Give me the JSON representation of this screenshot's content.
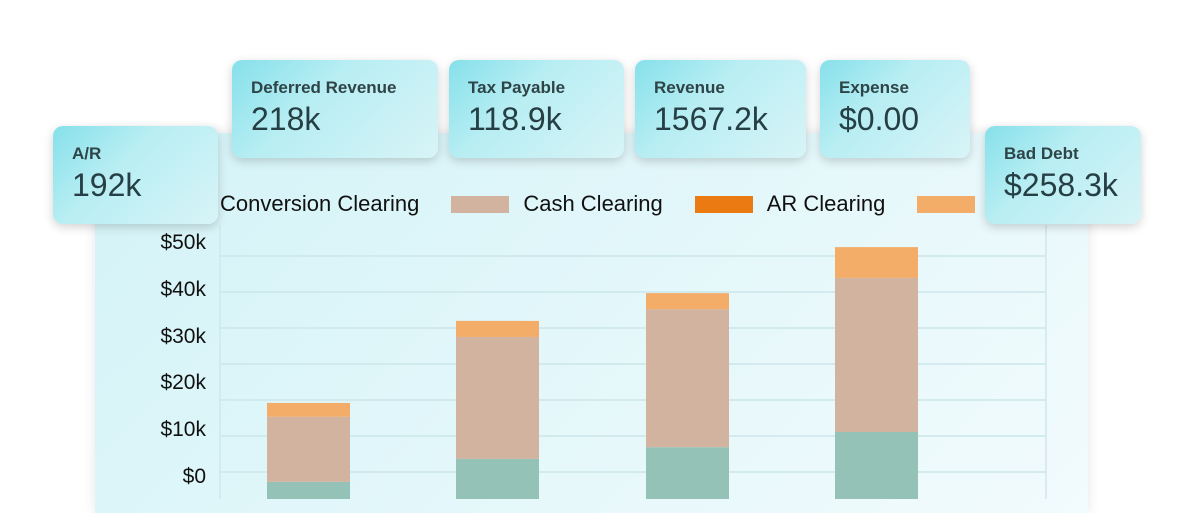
{
  "cards": [
    {
      "label": "A/R",
      "value": "192k"
    },
    {
      "label": "Deferred Revenue",
      "value": "218k"
    },
    {
      "label": "Tax Payable",
      "value": "118.9k"
    },
    {
      "label": "Revenue",
      "value": "1567.2k"
    },
    {
      "label": "Expense",
      "value": "$0.00"
    },
    {
      "label": "Bad Debt",
      "value": "$258.3k"
    }
  ],
  "chart_data": {
    "type": "bar",
    "stacked": true,
    "title": "",
    "xlabel": "",
    "ylabel": "",
    "ylim": [
      -5,
      55
    ],
    "grid": true,
    "legend_placement": "top",
    "y_tick_labels": [
      "$50k",
      "$40k",
      "$30k",
      "$20k",
      "$10k",
      "$0"
    ],
    "y_ticks": [
      50,
      40,
      30,
      20,
      10,
      0
    ],
    "categories": [
      "",
      "",
      "",
      ""
    ],
    "series": [
      {
        "name": "Conversion Clearing",
        "color": "#95c2b7",
        "values": [
          4.1,
          9.4,
          12.1,
          15.6
        ]
      },
      {
        "name": "Cash Clearing",
        "color": "#d2b39f",
        "values": [
          15.0,
          28.1,
          31.8,
          35.5
        ]
      },
      {
        "name": "AR Clearing",
        "color": "#ec7a12",
        "values": [
          0,
          0,
          0,
          0
        ]
      },
      {
        "name": "",
        "color": "#f3ad69",
        "values": [
          3.2,
          3.7,
          3.7,
          7.1
        ]
      }
    ]
  }
}
